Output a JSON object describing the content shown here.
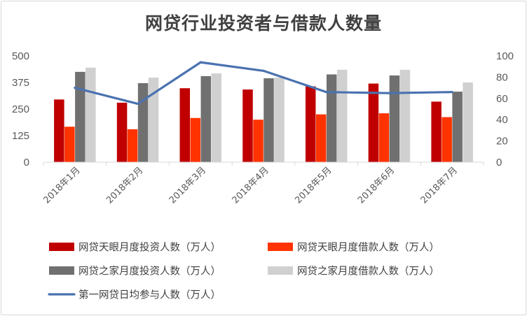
{
  "chart_data": {
    "type": "bar",
    "title": "网贷行业投资者与借款人数量",
    "categories": [
      "2018年1月",
      "2018年2月",
      "2018年3月",
      "2018年4月",
      "2018年5月",
      "2018年6月",
      "2018年7月"
    ],
    "series": [
      {
        "name": "网贷天眼月度投资人数（万人）",
        "type": "bar",
        "axis": "left",
        "color": "#c00000",
        "values": [
          295,
          280,
          348,
          342,
          357,
          370,
          285
        ]
      },
      {
        "name": "网贷天眼月度借款人数（万人）",
        "type": "bar",
        "axis": "left",
        "color": "#ff3300",
        "values": [
          167,
          155,
          208,
          200,
          225,
          230,
          212
        ]
      },
      {
        "name": "网贷之家月度投资人数（万人）",
        "type": "bar",
        "axis": "left",
        "color": "#707070",
        "values": [
          425,
          372,
          405,
          395,
          413,
          408,
          332
        ]
      },
      {
        "name": "网贷之家月度借款人数（万人）",
        "type": "bar",
        "axis": "left",
        "color": "#d0d0d0",
        "values": [
          445,
          398,
          418,
          398,
          435,
          435,
          375
        ]
      },
      {
        "name": "第一网贷日均参与人数（万人）",
        "type": "line",
        "axis": "right",
        "color": "#4a72b0",
        "values": [
          70,
          55,
          94,
          86,
          66,
          65,
          66
        ]
      }
    ],
    "y_left": {
      "min": 0,
      "max": 500,
      "ticks": [
        0,
        125,
        250,
        375,
        500
      ]
    },
    "y_right": {
      "min": 0,
      "max": 100,
      "ticks": [
        0,
        20,
        40,
        60,
        80,
        100
      ]
    },
    "legend_position": "bottom"
  }
}
